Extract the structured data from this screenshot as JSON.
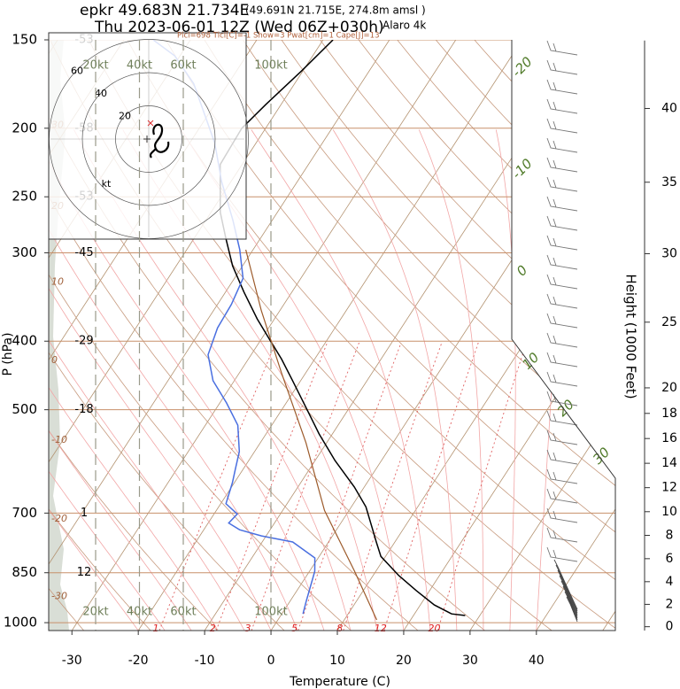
{
  "chart_data": {
    "type": "skewt",
    "title": "epkr 49.683N 21.734E",
    "title_location": "(49.691N 21.715E, 274.8m amsl )",
    "title_time": "Thu 2023-06-01 12Z (Wed 06Z+030h)",
    "model": "Alaro 4k",
    "indices": "Plcl=698 Tlcl[C]=-1 Show=3 Pwat[cm]=1 Cape[J]=13",
    "xlabel": "Temperature (C)",
    "ylabel": "P (hPa)",
    "y2label": "Height (1000 Feet)",
    "xlim": [
      -33.5,
      51.9
    ],
    "xticks": [
      -30,
      -20,
      -10,
      0,
      10,
      20,
      30,
      40
    ],
    "ylim": [
      1026,
      150
    ],
    "yticks": [
      150,
      200,
      250,
      300,
      400,
      500,
      700,
      850,
      1000
    ],
    "log_y": true,
    "level_temps": [
      -53,
      -58,
      -53,
      -45,
      -29,
      -18,
      1,
      12,
      null
    ],
    "y2lim": [
      -0.35,
      44.6
    ],
    "y2ticks": [
      0,
      2,
      4,
      6,
      8,
      10,
      12,
      14,
      16,
      18,
      20,
      25,
      30,
      35,
      40
    ],
    "dry_adiabat_labels": [
      30,
      20,
      10,
      0,
      -10,
      -20,
      -30
    ],
    "isotherm_labels": [
      -20,
      -10,
      0,
      10,
      20,
      30
    ],
    "mixing_ratio_labels": [
      1,
      2,
      3,
      5,
      8,
      12,
      20
    ],
    "speed_ticks": [
      {
        "value": 20,
        "label": "20kt"
      },
      {
        "value": 40,
        "label": "40kt"
      },
      {
        "value": 60,
        "label": "60kt"
      },
      {
        "value": 100,
        "label": "100kt"
      }
    ],
    "hodograph": {
      "rings": [
        20,
        40,
        60
      ],
      "unit": "kt"
    },
    "series": [
      {
        "color": "#000000",
        "pressure": [
          977,
          972,
          944,
          901,
          858,
          806,
          769,
          733,
          686,
          643,
          590,
          541,
          496,
          455,
          424,
          400,
          372,
          341,
          313,
          287,
          263,
          225,
          200,
          185,
          166,
          150
        ],
        "values": [
          27.8,
          25.6,
          22.1,
          18.0,
          13.9,
          9.3,
          7.2,
          5.1,
          2.2,
          -1.5,
          -7.0,
          -12.0,
          -16.6,
          -21.2,
          -25.0,
          -28.4,
          -32.6,
          -37.2,
          -41.5,
          -45.1,
          -48.6,
          -53.3,
          -53.6,
          -52.3,
          -50.2,
          -48.5
        ]
      },
      {
        "color": "#4a6fe0",
        "pressure": [
          972,
          936,
          846,
          810,
          769,
          754,
          739,
          723,
          702,
          679,
          634,
          606,
          573,
          526,
          489,
          455,
          418,
          383,
          355,
          326,
          297,
          270,
          238,
          210,
          173,
          158,
          150
        ],
        "values": [
          3.2,
          2.5,
          0.8,
          -0.5,
          -5.4,
          -10.7,
          -14.6,
          -16.9,
          -16.5,
          -19.2,
          -20.3,
          -21.2,
          -22.3,
          -25.1,
          -29.0,
          -33.2,
          -36.5,
          -37.7,
          -37.9,
          -38.7,
          -42.0,
          -45.9,
          -51.4,
          -56.2,
          -65.2,
          -70.8,
          -75.6
        ]
      },
      {
        "color": "#9c5a2a",
        "pressure": [
          991,
          846,
          694,
          557,
          443,
          362,
          297
        ],
        "values": [
          14.9,
          6.8,
          -3.7,
          -13.1,
          -23.7,
          -32.8,
          -41.1
        ]
      }
    ]
  }
}
